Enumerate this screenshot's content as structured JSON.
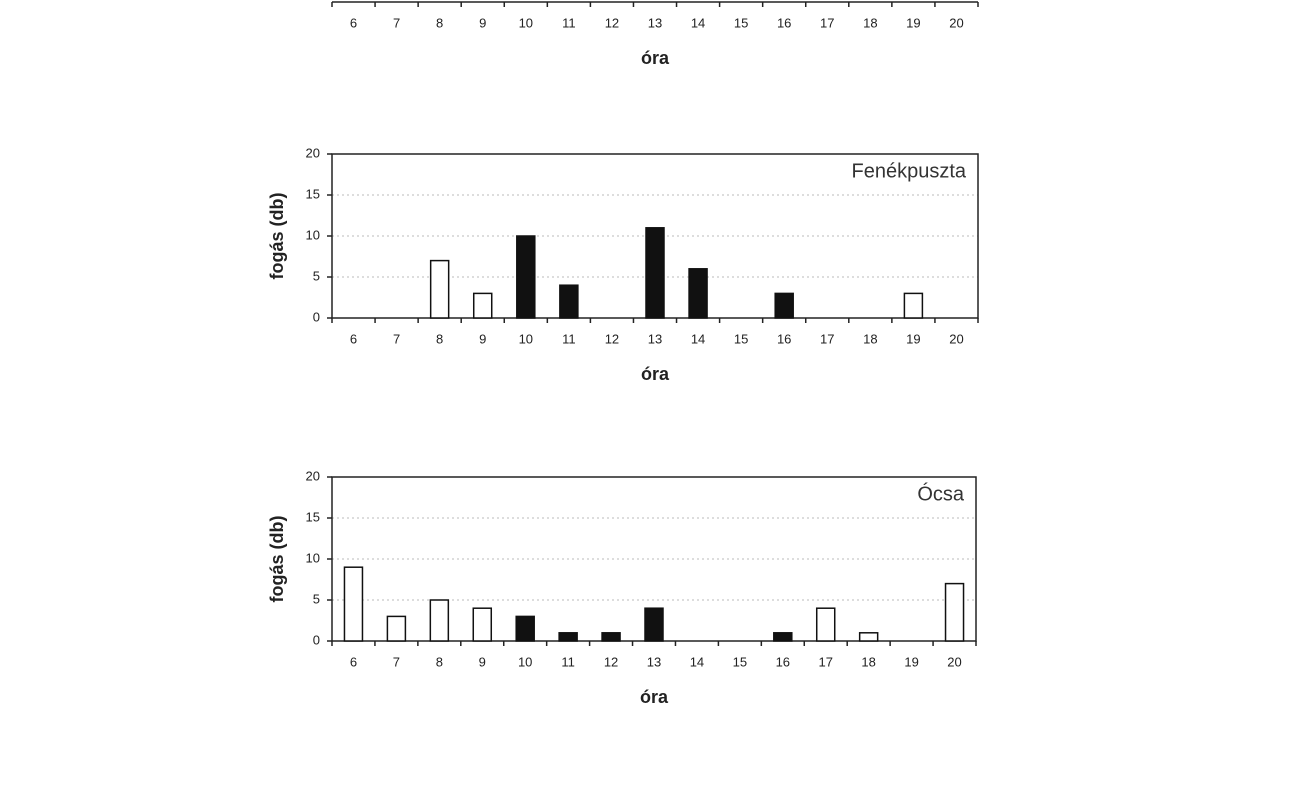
{
  "chart_data": [
    {
      "type": "bar",
      "xlabel": "óra",
      "categories": [
        "6",
        "7",
        "8",
        "9",
        "10",
        "11",
        "12",
        "13",
        "14",
        "15",
        "16",
        "17",
        "18",
        "19",
        "20"
      ]
    },
    {
      "type": "bar",
      "title": "Fenékpuszta",
      "xlabel": "óra",
      "ylabel": "fogás (db)",
      "categories": [
        "6",
        "7",
        "8",
        "9",
        "10",
        "11",
        "12",
        "13",
        "14",
        "15",
        "16",
        "17",
        "18",
        "19",
        "20"
      ],
      "values": [
        0,
        0,
        7,
        3,
        10,
        4,
        0,
        11,
        6,
        0,
        3,
        0,
        0,
        3,
        0
      ],
      "colors": [
        "#ffffff",
        "#ffffff",
        "#ffffff",
        "#ffffff",
        "#111111",
        "#111111",
        "#ffffff",
        "#111111",
        "#111111",
        "#ffffff",
        "#111111",
        "#ffffff",
        "#ffffff",
        "#ffffff",
        "#ffffff"
      ],
      "ylim": [
        0,
        20
      ],
      "yticks": [
        0,
        5,
        10,
        15,
        20
      ],
      "grid": true
    },
    {
      "type": "bar",
      "title": "Ócsa",
      "xlabel": "óra",
      "ylabel": "fogás (db)",
      "categories": [
        "6",
        "7",
        "8",
        "9",
        "10",
        "11",
        "12",
        "13",
        "14",
        "15",
        "16",
        "17",
        "18",
        "19",
        "20"
      ],
      "values": [
        9,
        3,
        5,
        4,
        3,
        1,
        1,
        4,
        0,
        0,
        1,
        4,
        1,
        0,
        7
      ],
      "colors": [
        "#ffffff",
        "#ffffff",
        "#ffffff",
        "#ffffff",
        "#111111",
        "#111111",
        "#111111",
        "#111111",
        "#ffffff",
        "#ffffff",
        "#111111",
        "#ffffff",
        "#ffffff",
        "#ffffff",
        "#ffffff"
      ],
      "ylim": [
        0,
        20
      ],
      "yticks": [
        0,
        5,
        10,
        15,
        20
      ],
      "grid": true
    }
  ]
}
